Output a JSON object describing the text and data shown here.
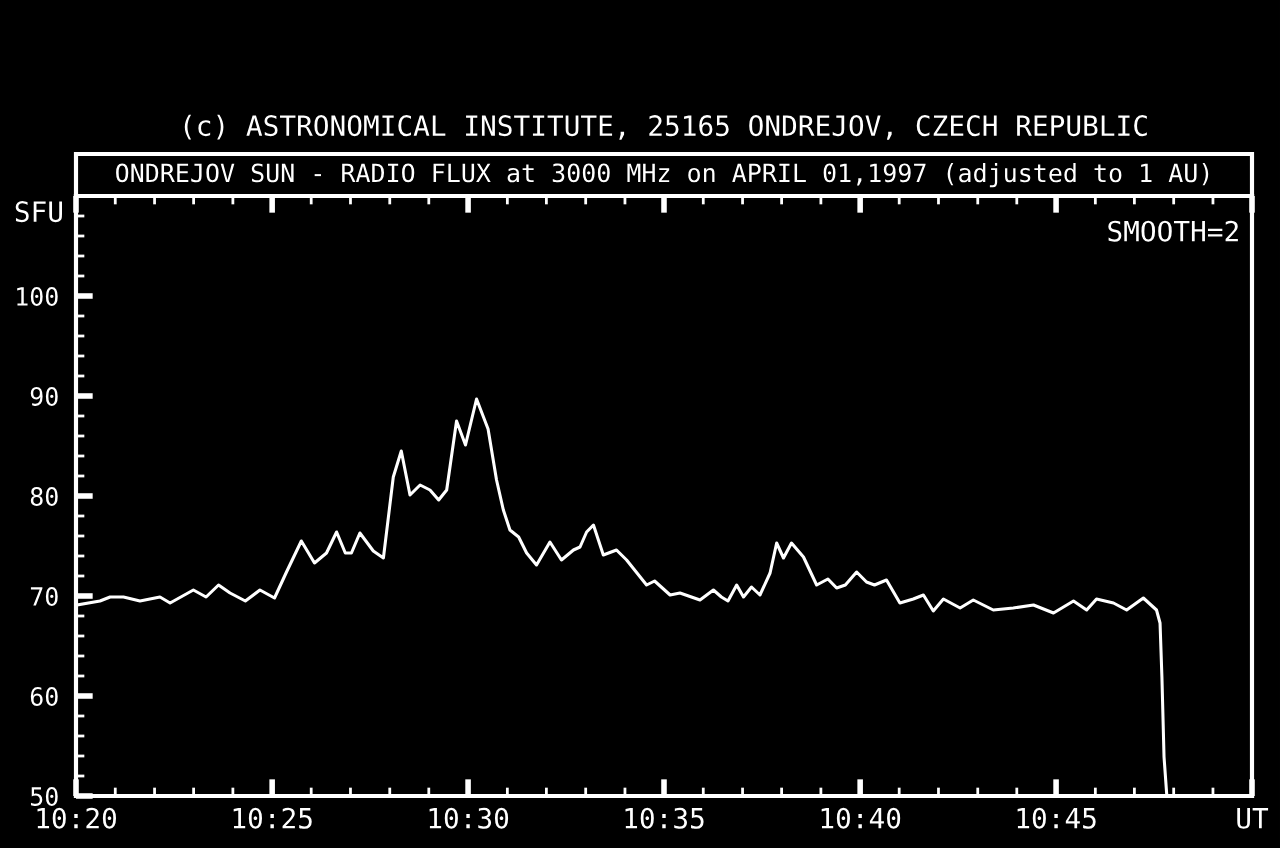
{
  "chart_data": {
    "type": "line",
    "title": "ONDREJOV SUN - RADIO FLUX at 3000 MHz on APRIL 01,1997 (adjusted to 1 AU)",
    "ylabel": "SFU",
    "annotations": [
      "(c) ASTRONOMICAL INSTITUTE, 25165 ONDREJOV, CZECH REPUBLIC",
      "SMOOTH=2"
    ],
    "xlim": [
      10.3333,
      10.8333
    ],
    "ylim": [
      50,
      110
    ],
    "xticks": [
      {
        "value": 10.3333,
        "label": "10:20"
      },
      {
        "value": 10.35,
        "label": null
      },
      {
        "value": 10.3667,
        "label": null
      },
      {
        "value": 10.3833,
        "label": null
      },
      {
        "value": 10.4,
        "label": null
      },
      {
        "value": 10.4167,
        "label": "10:25"
      },
      {
        "value": 10.4333,
        "label": null
      },
      {
        "value": 10.45,
        "label": null
      },
      {
        "value": 10.4667,
        "label": null
      },
      {
        "value": 10.4833,
        "label": null
      },
      {
        "value": 10.5,
        "label": "10:30"
      },
      {
        "value": 10.5167,
        "label": null
      },
      {
        "value": 10.5333,
        "label": null
      },
      {
        "value": 10.55,
        "label": null
      },
      {
        "value": 10.5667,
        "label": null
      },
      {
        "value": 10.5833,
        "label": "10:35"
      },
      {
        "value": 10.6,
        "label": null
      },
      {
        "value": 10.6167,
        "label": null
      },
      {
        "value": 10.6333,
        "label": null
      },
      {
        "value": 10.65,
        "label": null
      },
      {
        "value": 10.6667,
        "label": "10:40"
      },
      {
        "value": 10.6833,
        "label": null
      },
      {
        "value": 10.7,
        "label": null
      },
      {
        "value": 10.7167,
        "label": null
      },
      {
        "value": 10.7333,
        "label": null
      },
      {
        "value": 10.75,
        "label": "10:45"
      },
      {
        "value": 10.7667,
        "label": null
      },
      {
        "value": 10.7833,
        "label": null
      },
      {
        "value": 10.8,
        "label": null
      },
      {
        "value": 10.8167,
        "label": null
      },
      {
        "value": 10.8333,
        "label": "UT"
      }
    ],
    "yticks": [
      50,
      {
        "value": 52,
        "label": null
      },
      {
        "value": 54,
        "label": null
      },
      {
        "value": 56,
        "label": null
      },
      {
        "value": 58,
        "label": null
      },
      60,
      {
        "value": 62,
        "label": null
      },
      {
        "value": 64,
        "label": null
      },
      {
        "value": 66,
        "label": null
      },
      {
        "value": 68,
        "label": null
      },
      70,
      {
        "value": 72,
        "label": null
      },
      {
        "value": 74,
        "label": null
      },
      {
        "value": 76,
        "label": null
      },
      {
        "value": 78,
        "label": null
      },
      80,
      {
        "value": 82,
        "label": null
      },
      {
        "value": 84,
        "label": null
      },
      {
        "value": 86,
        "label": null
      },
      {
        "value": 88,
        "label": null
      },
      90,
      {
        "value": 92,
        "label": null
      },
      {
        "value": 94,
        "label": null
      },
      {
        "value": 96,
        "label": null
      },
      {
        "value": 98,
        "label": null
      },
      100,
      {
        "value": 102,
        "label": null
      },
      {
        "value": 104,
        "label": null
      },
      {
        "value": 106,
        "label": null
      },
      {
        "value": 108,
        "label": null
      }
    ],
    "grid": false,
    "legend": false,
    "marker": "none",
    "line_style": "solid",
    "series": [
      {
        "color": "#ffffff",
        "x": [
          10.3336,
          10.3435,
          10.3478,
          10.3535,
          10.3605,
          10.369,
          10.3733,
          10.3832,
          10.3886,
          10.3939,
          10.3988,
          10.4053,
          10.4115,
          10.4177,
          10.4228,
          10.4291,
          10.4347,
          10.4398,
          10.4441,
          10.4478,
          10.4504,
          10.454,
          10.4597,
          10.464,
          10.4682,
          10.4716,
          10.4753,
          10.4796,
          10.4838,
          10.4875,
          10.4909,
          10.4951,
          10.4989,
          10.5036,
          10.5085,
          10.5121,
          10.515,
          10.5178,
          10.5215,
          10.5249,
          10.5291,
          10.5348,
          10.5397,
          10.5448,
          10.5476,
          10.5504,
          10.5533,
          10.5575,
          10.5631,
          10.5674,
          10.5759,
          10.5793,
          10.5859,
          10.5901,
          10.5986,
          10.6043,
          10.6077,
          10.6105,
          10.6142,
          10.6171,
          10.6205,
          10.6241,
          10.6284,
          10.6312,
          10.6341,
          10.6375,
          10.6426,
          10.6482,
          10.653,
          10.6567,
          10.6604,
          10.6652,
          10.6694,
          10.6728,
          10.6779,
          10.6836,
          10.6893,
          10.6936,
          10.6978,
          10.7021,
          10.7092,
          10.7148,
          10.7233,
          10.7318,
          10.7404,
          10.7489,
          10.7574,
          10.763,
          10.7672,
          10.7744,
          10.78,
          10.7871,
          10.7927,
          10.7942,
          10.795,
          10.7959,
          10.797
        ],
        "values": [
          69.1,
          69.5,
          69.9,
          69.9,
          69.5,
          69.9,
          69.3,
          70.6,
          69.9,
          71.1,
          70.3,
          69.5,
          70.6,
          69.8,
          72.4,
          75.5,
          73.3,
          74.3,
          76.4,
          74.3,
          74.3,
          76.3,
          74.5,
          73.8,
          81.9,
          84.5,
          80.1,
          81.1,
          80.6,
          79.6,
          80.6,
          87.5,
          85.1,
          89.7,
          86.7,
          81.6,
          78.6,
          76.6,
          75.9,
          74.3,
          73.1,
          75.4,
          73.6,
          74.6,
          74.9,
          76.4,
          77.1,
          74.1,
          74.6,
          73.6,
          71.1,
          71.5,
          70.1,
          70.3,
          69.6,
          70.6,
          69.9,
          69.5,
          71.1,
          69.9,
          70.9,
          70.1,
          72.3,
          75.3,
          73.8,
          75.3,
          73.9,
          71.1,
          71.7,
          70.8,
          71.1,
          72.4,
          71.4,
          71.1,
          71.6,
          69.3,
          69.7,
          70.1,
          68.5,
          69.7,
          68.8,
          69.6,
          68.6,
          68.8,
          69.1,
          68.3,
          69.5,
          68.6,
          69.7,
          69.3,
          68.6,
          69.8,
          68.6,
          67.3,
          61.9,
          53.9,
          50.3
        ]
      }
    ]
  }
}
